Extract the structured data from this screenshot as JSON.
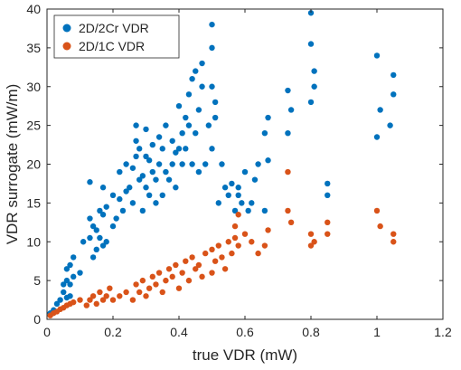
{
  "chart_data": {
    "type": "scatter",
    "title": "",
    "xlabel": "true VDR (mW)",
    "ylabel": "VDR surrogate (mW/m)",
    "xlim": [
      0,
      1.2
    ],
    "ylim": [
      0,
      40
    ],
    "xticks": [
      0,
      0.2,
      0.4,
      0.6,
      0.8,
      1.0,
      1.2
    ],
    "xtick_labels": [
      "0",
      "0.2",
      "0.4",
      "0.6",
      "0.8",
      "1",
      "1.2"
    ],
    "yticks": [
      0,
      5,
      10,
      15,
      20,
      25,
      30,
      35,
      40
    ],
    "ytick_labels": [
      "0",
      "5",
      "10",
      "15",
      "20",
      "25",
      "30",
      "35",
      "40"
    ],
    "grid": false,
    "legend_position": "top-left",
    "series": [
      {
        "name": "2D/2Cr VDR",
        "color": "#0072BD",
        "x": [
          0.01,
          0.02,
          0.03,
          0.04,
          0.05,
          0.05,
          0.06,
          0.06,
          0.06,
          0.07,
          0.07,
          0.07,
          0.08,
          0.08,
          0.1,
          0.11,
          0.13,
          0.13,
          0.13,
          0.14,
          0.14,
          0.15,
          0.15,
          0.16,
          0.16,
          0.17,
          0.17,
          0.17,
          0.18,
          0.18,
          0.2,
          0.2,
          0.21,
          0.22,
          0.22,
          0.23,
          0.24,
          0.24,
          0.25,
          0.26,
          0.26,
          0.27,
          0.27,
          0.27,
          0.28,
          0.28,
          0.29,
          0.29,
          0.3,
          0.3,
          0.3,
          0.31,
          0.31,
          0.32,
          0.32,
          0.33,
          0.33,
          0.34,
          0.34,
          0.35,
          0.35,
          0.36,
          0.36,
          0.37,
          0.38,
          0.38,
          0.39,
          0.39,
          0.4,
          0.4,
          0.41,
          0.41,
          0.42,
          0.42,
          0.43,
          0.43,
          0.44,
          0.44,
          0.45,
          0.45,
          0.46,
          0.46,
          0.47,
          0.47,
          0.48,
          0.49,
          0.5,
          0.5,
          0.5,
          0.5,
          0.51,
          0.51,
          0.52,
          0.53,
          0.54,
          0.55,
          0.56,
          0.57,
          0.58,
          0.58,
          0.59,
          0.6,
          0.61,
          0.62,
          0.63,
          0.64,
          0.66,
          0.66,
          0.67,
          0.67,
          0.73,
          0.73,
          0.74,
          0.8,
          0.8,
          0.81,
          0.81,
          0.8,
          0.85,
          0.85,
          1.0,
          1.01,
          1.0,
          1.05,
          1.05,
          1.04
        ],
        "y": [
          0.8,
          1.2,
          2.0,
          2.5,
          3.5,
          4.5,
          2.8,
          5.0,
          6.5,
          3.0,
          4.5,
          7.0,
          5.5,
          8.0,
          6.0,
          10.0,
          10.5,
          13.0,
          17.7,
          8.0,
          12.0,
          9.0,
          11.5,
          10.5,
          14.0,
          9.5,
          13.5,
          17.0,
          10.0,
          14.5,
          12.0,
          16.0,
          13.0,
          15.5,
          19.0,
          14.0,
          16.5,
          20.0,
          17.0,
          15.0,
          19.5,
          21.0,
          23.0,
          25.0,
          18.0,
          22.0,
          14.0,
          18.5,
          17.0,
          21.0,
          24.5,
          16.0,
          20.5,
          19.0,
          22.5,
          15.0,
          18.0,
          20.0,
          23.5,
          16.0,
          22.0,
          19.0,
          25.0,
          18.0,
          20.0,
          23.0,
          17.0,
          21.5,
          22.0,
          27.5,
          20.0,
          24.0,
          22.0,
          26.0,
          25.0,
          29.0,
          20.0,
          31.0,
          24.0,
          32.0,
          19.0,
          27.0,
          30.0,
          33.0,
          20.0,
          25.0,
          35.0,
          38.0,
          30.0,
          22.0,
          26.0,
          28.0,
          15.0,
          20.0,
          17.0,
          16.0,
          17.5,
          14.0,
          16.0,
          17.0,
          15.0,
          19.0,
          14.0,
          15.0,
          18.0,
          20.0,
          14.0,
          24.0,
          20.5,
          26.0,
          29.5,
          24.0,
          27.0,
          35.5,
          39.5,
          30.0,
          32.0,
          28.0,
          17.5,
          16.0,
          34.0,
          27.0,
          23.5,
          31.5,
          29.0,
          25.0
        ]
      },
      {
        "name": "2D/1C VDR",
        "color": "#D95319",
        "x": [
          0.01,
          0.02,
          0.03,
          0.04,
          0.05,
          0.06,
          0.07,
          0.08,
          0.1,
          0.12,
          0.13,
          0.14,
          0.15,
          0.16,
          0.17,
          0.18,
          0.19,
          0.2,
          0.22,
          0.24,
          0.26,
          0.27,
          0.28,
          0.29,
          0.3,
          0.31,
          0.32,
          0.33,
          0.34,
          0.35,
          0.36,
          0.37,
          0.38,
          0.39,
          0.4,
          0.41,
          0.42,
          0.43,
          0.44,
          0.45,
          0.46,
          0.47,
          0.48,
          0.5,
          0.5,
          0.51,
          0.52,
          0.53,
          0.54,
          0.55,
          0.56,
          0.57,
          0.57,
          0.58,
          0.58,
          0.6,
          0.62,
          0.64,
          0.66,
          0.67,
          0.73,
          0.73,
          0.74,
          0.8,
          0.8,
          0.81,
          0.85,
          0.85,
          1.0,
          1.01,
          1.05,
          1.05
        ],
        "y": [
          0.5,
          0.8,
          1.0,
          1.3,
          1.5,
          1.8,
          2.0,
          2.2,
          2.5,
          1.8,
          2.5,
          3.0,
          2.0,
          3.5,
          2.5,
          3.0,
          4.0,
          2.5,
          3.0,
          3.5,
          2.5,
          4.5,
          3.5,
          5.0,
          3.0,
          4.0,
          5.5,
          4.5,
          6.0,
          3.5,
          5.0,
          6.5,
          5.5,
          7.0,
          4.0,
          6.0,
          7.5,
          5.0,
          8.0,
          6.5,
          7.0,
          5.5,
          8.5,
          6.0,
          9.0,
          7.5,
          9.5,
          8.0,
          6.5,
          10.0,
          8.5,
          10.5,
          12.0,
          13.5,
          9.5,
          11.0,
          10.0,
          8.5,
          9.5,
          11.5,
          14.0,
          19.0,
          12.5,
          9.5,
          11.0,
          10.0,
          12.5,
          11.0,
          14.0,
          12.0,
          11.0,
          10.0
        ]
      }
    ]
  }
}
